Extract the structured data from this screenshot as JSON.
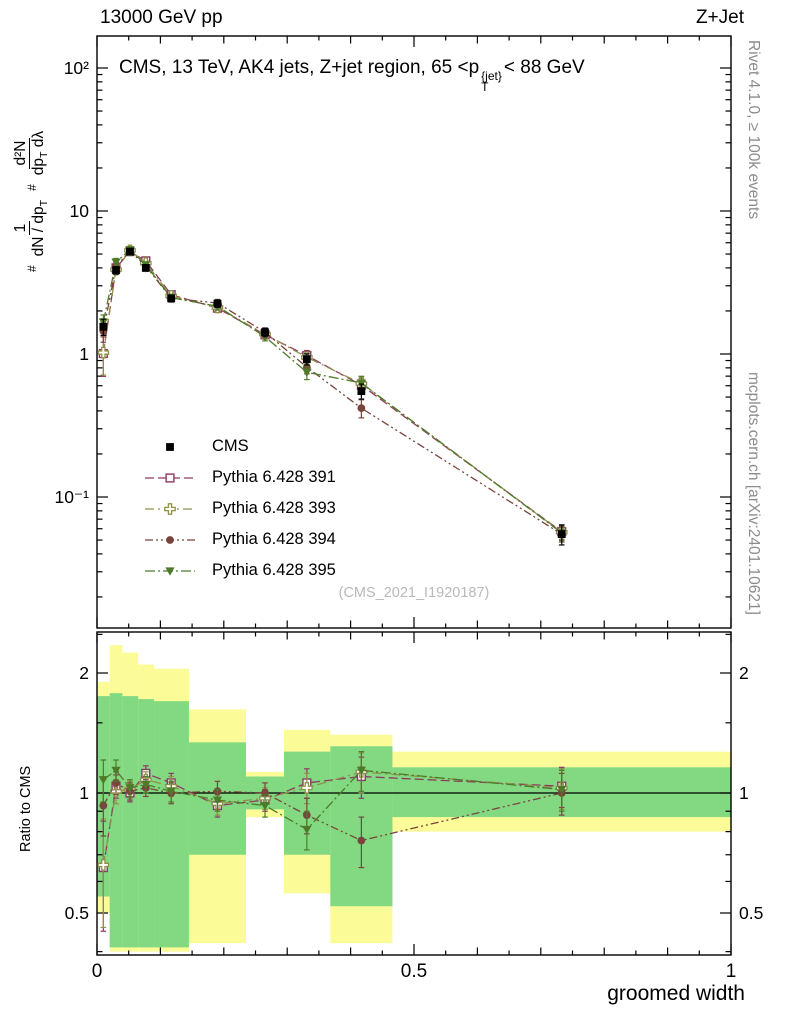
{
  "header": {
    "left": "13000 GeV pp",
    "right": "Z+Jet"
  },
  "title": {
    "pre": "CMS, 13 TeV, AK4 jets, Z+jet region, 65 <p",
    "sup": "{jet}",
    "sub": "T",
    "post": "< 88 GeV"
  },
  "ylabel": {
    "hash1": "#",
    "f1_num": "1",
    "f1_den": "dN / dp",
    "f1_den_sub": "T",
    "hash2": "#",
    "f2_num": "d²N",
    "f2_den": "dp",
    "f2_den_sub": "T",
    "f2_den_post": " dλ"
  },
  "watermark": "(CMS_2021_I1920187)",
  "side_notes": {
    "top": "Rivet 4.1.0, ≥ 100k events",
    "bottom": "mcplots.cern.ch [arXiv:2401.10621]"
  },
  "ratio_label": "Ratio to CMS",
  "xlabel": "groomed width",
  "chart_data": {
    "type": "line",
    "title": "CMS, 13 TeV, AK4 jets, Z+jet region, 65 < pT{jet} < 88 GeV",
    "xlabel": "groomed width",
    "ylabel": "1/(dN/dpT) d²N/(dpT dλ)",
    "ratio_ylabel": "Ratio to CMS",
    "legend_position": "middle-left",
    "grid": false,
    "xlim": [
      0,
      1
    ],
    "main_axis": {
      "scale": "log",
      "ylim": [
        0.0125,
        165
      ],
      "ticks": [
        {
          "v": 100,
          "label": "10²"
        },
        {
          "v": 10,
          "label": "10"
        },
        {
          "v": 1,
          "label": "1"
        },
        {
          "v": 0.1,
          "label": "10⁻¹"
        }
      ]
    },
    "ratio_axis": {
      "scale": "log",
      "ylim": [
        0.39,
        2.53
      ],
      "ticks": [
        {
          "v": 2,
          "label": "2"
        },
        {
          "v": 1,
          "label": "1"
        },
        {
          "v": 0.5,
          "label": "0.5"
        }
      ],
      "minor": [
        0.4,
        0.6,
        0.7,
        0.8,
        0.9,
        1.5,
        2.5
      ]
    },
    "xticks": [
      {
        "v": 0,
        "label": "0"
      },
      {
        "v": 0.5,
        "label": "0.5"
      },
      {
        "v": 1,
        "label": "1"
      }
    ],
    "x": [
      0.01,
      0.03,
      0.052,
      0.077,
      0.117,
      0.19,
      0.265,
      0.331,
      0.417,
      0.733
    ],
    "cms": {
      "name": "CMS",
      "color": "#000000",
      "marker": "square-filled",
      "values": [
        1.55,
        3.85,
        5.2,
        4.0,
        2.45,
        2.25,
        1.42,
        0.92,
        0.55,
        0.055
      ],
      "err_frac": [
        0.13,
        0.06,
        0.05,
        0.05,
        0.05,
        0.06,
        0.07,
        0.09,
        0.12,
        0.16
      ]
    },
    "series": [
      {
        "name": "Pythia 6.428 391",
        "color": "#8c3a62",
        "marker": "square-open",
        "dash": "9,4",
        "ratio": [
          0.65,
          1.04,
          1.0,
          1.12,
          1.06,
          0.93,
          0.96,
          1.06,
          1.1,
          1.04
        ],
        "ratio_err": [
          0.2,
          0.07,
          0.05,
          0.05,
          0.06,
          0.06,
          0.06,
          0.09,
          0.13,
          0.12
        ]
      },
      {
        "name": "Pythia 6.428 393",
        "color": "#90904a",
        "marker": "plus-open",
        "dash": "9,4,2,4",
        "ratio": [
          0.66,
          1.01,
          1.02,
          1.08,
          1.04,
          0.94,
          0.97,
          1.03,
          1.13,
          1.03
        ],
        "ratio_err": [
          0.2,
          0.07,
          0.05,
          0.05,
          0.06,
          0.06,
          0.06,
          0.09,
          0.13,
          0.12
        ]
      },
      {
        "name": "Pythia 6.428 394",
        "color": "#79443b",
        "marker": "circle-filled",
        "dash": "8,3,2,3,2,3",
        "ratio": [
          0.93,
          1.06,
          1.01,
          1.03,
          1.0,
          1.01,
          1.0,
          0.88,
          0.76,
          1.0
        ],
        "ratio_err": [
          0.15,
          0.07,
          0.05,
          0.05,
          0.06,
          0.06,
          0.06,
          0.09,
          0.11,
          0.12
        ]
      },
      {
        "name": "Pythia 6.428 395",
        "color": "#4e7b28",
        "marker": "triangle-down-filled",
        "dash": "10,3,2,3",
        "ratio": [
          1.08,
          1.14,
          1.03,
          1.05,
          1.01,
          0.96,
          0.93,
          0.81,
          1.14,
          1.02
        ],
        "ratio_err": [
          0.13,
          0.07,
          0.05,
          0.05,
          0.06,
          0.06,
          0.06,
          0.09,
          0.13,
          0.12
        ]
      }
    ],
    "bands": [
      {
        "x0": 0.0,
        "x1": 0.02,
        "ylo": 0.5,
        "yhi": 1.9,
        "glo": 0.55,
        "ghi": 1.75
      },
      {
        "x0": 0.02,
        "x1": 0.04,
        "ylo": 0.4,
        "yhi": 2.35,
        "glo": 0.41,
        "ghi": 1.78
      },
      {
        "x0": 0.04,
        "x1": 0.065,
        "ylo": 0.4,
        "yhi": 2.25,
        "glo": 0.41,
        "ghi": 1.75
      },
      {
        "x0": 0.065,
        "x1": 0.09,
        "ylo": 0.4,
        "yhi": 2.1,
        "glo": 0.41,
        "ghi": 1.72
      },
      {
        "x0": 0.09,
        "x1": 0.145,
        "ylo": 0.4,
        "yhi": 2.05,
        "glo": 0.41,
        "ghi": 1.7
      },
      {
        "x0": 0.145,
        "x1": 0.235,
        "ylo": 0.42,
        "yhi": 1.62,
        "glo": 0.7,
        "ghi": 1.34
      },
      {
        "x0": 0.235,
        "x1": 0.295,
        "ylo": 0.87,
        "yhi": 1.13,
        "glo": 0.91,
        "ghi": 1.1
      },
      {
        "x0": 0.295,
        "x1": 0.368,
        "ylo": 0.56,
        "yhi": 1.44,
        "glo": 0.7,
        "ghi": 1.27
      },
      {
        "x0": 0.368,
        "x1": 0.466,
        "ylo": 0.42,
        "yhi": 1.4,
        "glo": 0.52,
        "ghi": 1.31
      },
      {
        "x0": 0.466,
        "x1": 1.0,
        "ylo": 0.8,
        "yhi": 1.27,
        "glo": 0.87,
        "ghi": 1.16
      }
    ],
    "style": {
      "band_outer": "#fbfb98",
      "band_inner": "#82d982",
      "ratio_line": "#000000"
    }
  }
}
